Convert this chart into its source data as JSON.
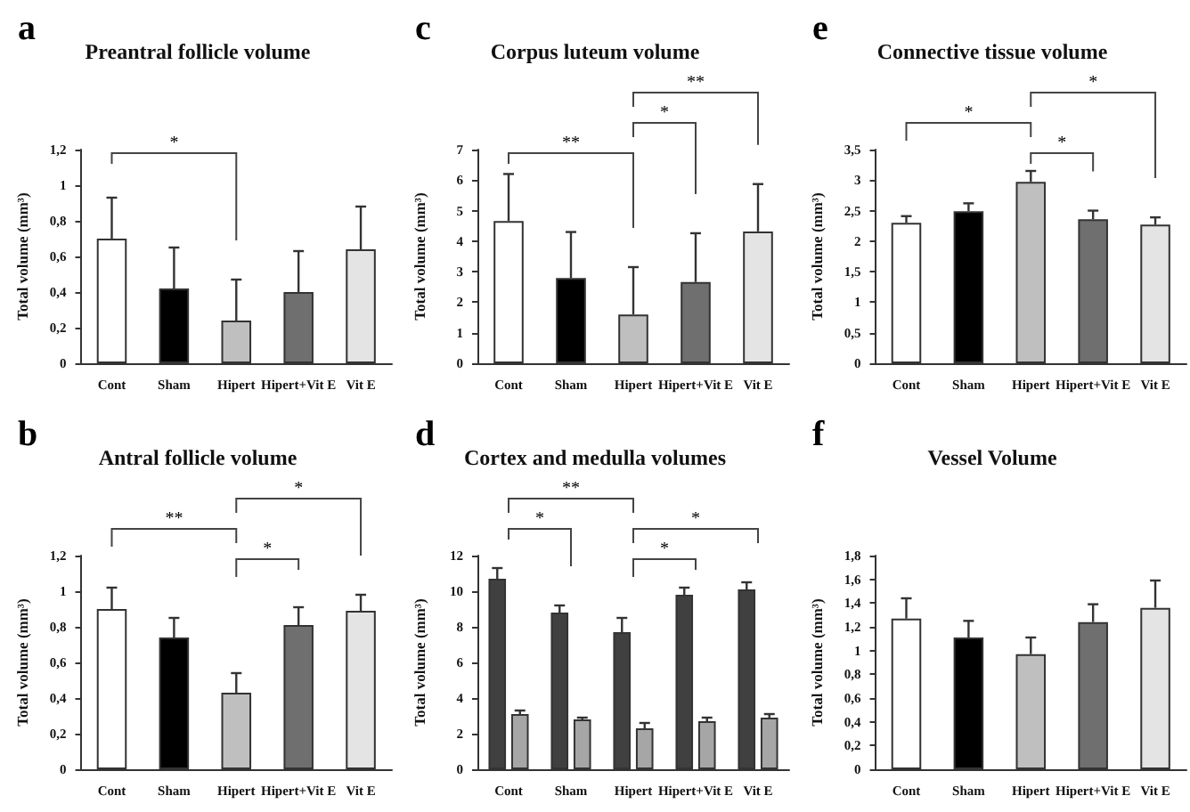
{
  "chart_data": [
    {
      "type": "bar",
      "title": "Preantral follicle volume",
      "ylabel": "Total volume (mm³)",
      "categories": [
        "Cont",
        "Sham",
        "Hipert",
        "Hipert+Vit E",
        "Vit E"
      ],
      "values": [
        0.7,
        0.42,
        0.24,
        0.4,
        0.64
      ],
      "colors": [
        "#ffffff",
        "#000000",
        "#bfbfbf",
        "#6f6f6f",
        "#e4e4e4"
      ],
      "errors": [
        [
          0.7,
          0.93
        ],
        [
          0.42,
          0.65
        ],
        [
          0.24,
          0.47
        ],
        [
          0.4,
          0.63
        ],
        [
          0.64,
          0.88
        ]
      ],
      "ylim": [
        0,
        1.2
      ],
      "yticks": [
        0,
        {
          "value": 0.2,
          "label": "0,2"
        },
        {
          "value": 0.4,
          "label": "0,4"
        },
        {
          "value": 0.6,
          "label": "0,6"
        },
        {
          "value": 0.8,
          "label": "0,8"
        },
        1,
        {
          "value": 1.2,
          "label": "1,2"
        }
      ],
      "annotations": [
        "a",
        "*"
      ]
    },
    {
      "type": "bar",
      "title": "Corpus luteum volume",
      "ylabel": "Total volume (mm³)",
      "categories": [
        "Cont",
        "Sham",
        "Hipert",
        "Hipert+Vit E",
        "Vit E"
      ],
      "values": [
        4.66,
        2.79,
        1.6,
        2.66,
        4.32
      ],
      "colors": [
        "#ffffff",
        "#000000",
        "#bfbfbf",
        "#6f6f6f",
        "#e4e4e4"
      ],
      "errors": [
        [
          4.66,
          6.2
        ],
        [
          2.79,
          4.3
        ],
        [
          1.6,
          3.15
        ],
        [
          2.66,
          4.26
        ],
        [
          4.32,
          5.87
        ]
      ],
      "ylim": [
        0,
        7
      ],
      "yticks": [
        0,
        1,
        2,
        3,
        4,
        5,
        6,
        7
      ],
      "annotations": [
        "c",
        "**",
        "*",
        "**"
      ]
    },
    {
      "type": "bar",
      "title": "Connective tissue volume",
      "ylabel": "Total volume (mm³)",
      "categories": [
        "Cont",
        "Sham",
        "Hipert",
        "Hipert+Vit E",
        "Vit E"
      ],
      "values": [
        2.3,
        2.49,
        2.97,
        2.36,
        2.27
      ],
      "colors": [
        "#ffffff",
        "#000000",
        "#bfbfbf",
        "#6f6f6f",
        "#e4e4e4"
      ],
      "errors": [
        [
          2.3,
          2.41
        ],
        [
          2.49,
          2.62
        ],
        [
          2.97,
          3.15
        ],
        [
          2.36,
          2.5
        ],
        [
          2.27,
          2.39
        ]
      ],
      "ylim": [
        0,
        3.5
      ],
      "yticks": [
        0,
        {
          "value": 0.5,
          "label": "0,5"
        },
        1,
        {
          "value": 1.5,
          "label": "1,5"
        },
        2,
        {
          "value": 2.5,
          "label": "2,5"
        },
        3,
        {
          "value": 3.5,
          "label": "3,5"
        }
      ],
      "annotations": [
        "e",
        "*",
        "*",
        "*"
      ]
    },
    {
      "type": "bar",
      "title": "Antral follicle volume",
      "ylabel": "Total volume (mm³)",
      "categories": [
        "Cont",
        "Sham",
        "Hipert",
        "Hipert+Vit E",
        "Vit E"
      ],
      "values": [
        0.9,
        0.74,
        0.43,
        0.81,
        0.89
      ],
      "colors": [
        "#ffffff",
        "#000000",
        "#bfbfbf",
        "#6f6f6f",
        "#e4e4e4"
      ],
      "errors": [
        [
          0.9,
          1.02
        ],
        [
          0.74,
          0.85
        ],
        [
          0.43,
          0.54
        ],
        [
          0.81,
          0.91
        ],
        [
          0.89,
          0.98
        ]
      ],
      "ylim": [
        0,
        1.2
      ],
      "yticks": [
        0,
        {
          "value": 0.2,
          "label": "0,2"
        },
        {
          "value": 0.4,
          "label": "0,4"
        },
        {
          "value": 0.6,
          "label": "0,6"
        },
        {
          "value": 0.8,
          "label": "0,8"
        },
        1,
        {
          "value": 1.2,
          "label": "1,2"
        }
      ],
      "annotations": [
        "b",
        "**",
        "*",
        "*"
      ]
    },
    {
      "type": "bar",
      "title": "Cortex and medulla volumes",
      "ylabel": "Total volume (mm³)",
      "categories": [
        "Cont",
        "Sham",
        "Hipert",
        "Hipert+Vit E",
        "Vit E"
      ],
      "series": [
        {
          "color": "#404040",
          "values": [
            10.7,
            8.8,
            7.7,
            9.8,
            10.1
          ],
          "errors": [
            [
              10.7,
              11.3
            ],
            [
              8.8,
              9.2
            ],
            [
              7.7,
              8.5
            ],
            [
              9.8,
              10.2
            ],
            [
              10.1,
              10.5
            ]
          ]
        },
        {
          "color": "#a6a6a6",
          "values": [
            3.1,
            2.8,
            2.3,
            2.7,
            2.9
          ],
          "errors": [
            [
              3.1,
              3.3
            ],
            [
              2.8,
              2.9
            ],
            [
              2.3,
              2.6
            ],
            [
              2.7,
              2.9
            ],
            [
              2.9,
              3.1
            ]
          ]
        }
      ],
      "ylim": [
        0,
        12
      ],
      "yticks": [
        0,
        2,
        4,
        6,
        8,
        10,
        12
      ],
      "annotations": [
        "d",
        "**",
        "*",
        "*",
        "*"
      ]
    },
    {
      "type": "bar",
      "title": "Vessel Volume",
      "ylabel": "Total volume (mm³)",
      "categories": [
        "Cont",
        "Sham",
        "Hipert",
        "Hipert+Vit E",
        "Vit E"
      ],
      "values": [
        1.27,
        1.11,
        0.97,
        1.24,
        1.36
      ],
      "colors": [
        "#ffffff",
        "#000000",
        "#bfbfbf",
        "#6f6f6f",
        "#e4e4e4"
      ],
      "errors": [
        [
          1.27,
          1.44
        ],
        [
          1.11,
          1.25
        ],
        [
          0.97,
          1.11
        ],
        [
          1.24,
          1.39
        ],
        [
          1.36,
          1.59
        ]
      ],
      "ylim": [
        0,
        1.8
      ],
      "yticks": [
        0,
        {
          "value": 0.2,
          "label": "0,2"
        },
        {
          "value": 0.4,
          "label": "0,4"
        },
        {
          "value": 0.6,
          "label": "0,6"
        },
        {
          "value": 0.8,
          "label": "0,8"
        },
        1,
        {
          "value": 1.2,
          "label": "1,2"
        },
        {
          "value": 1.4,
          "label": "1,4"
        },
        {
          "value": 1.6,
          "label": "1,6"
        },
        {
          "value": 1.8,
          "label": "1,8"
        }
      ],
      "annotations": [
        "f"
      ]
    }
  ]
}
